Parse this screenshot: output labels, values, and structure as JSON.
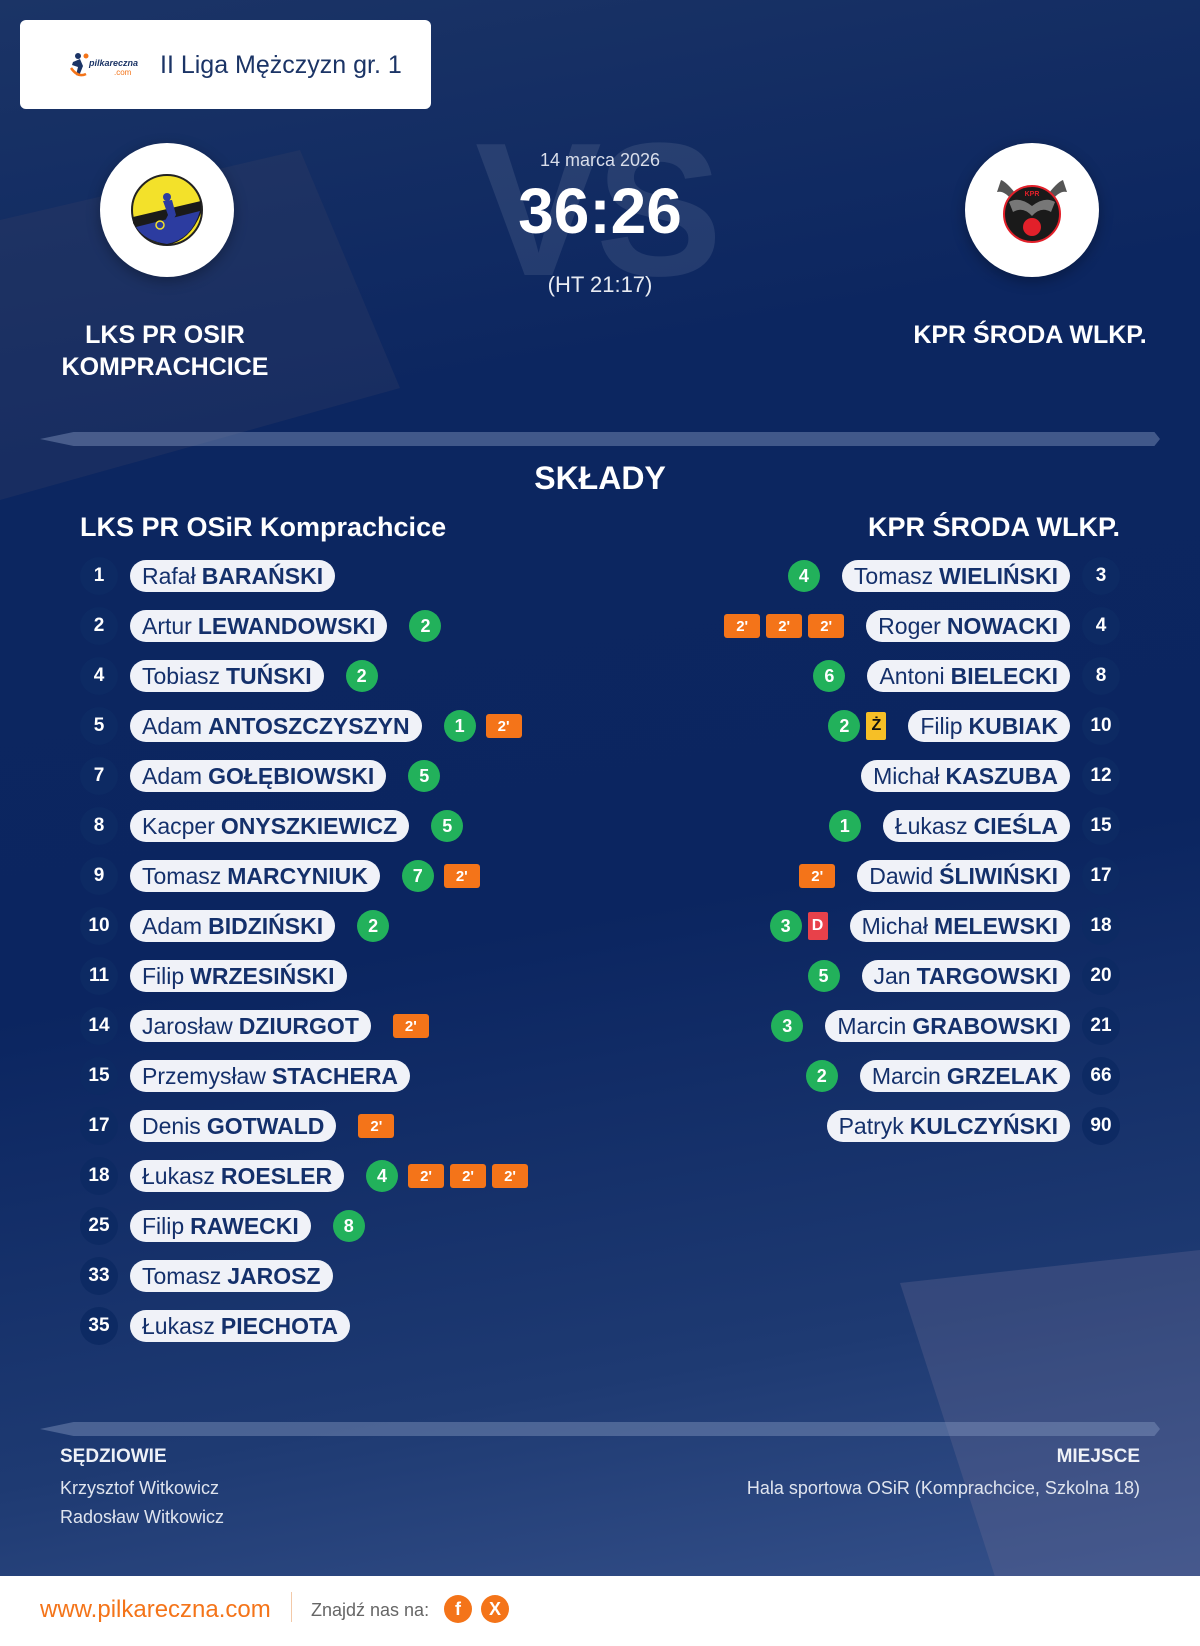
{
  "header": {
    "brand": "pilkareczna.com",
    "league": "II Liga Mężczyzn gr. 1"
  },
  "match": {
    "date": "14 marca 2026",
    "score": "36:26",
    "halftime": "(HT 21:17)",
    "watermark": "VS"
  },
  "home_team": {
    "display_name_line1": "LKS PR OSIR",
    "display_name_line2": "KOMPRACHCICE",
    "lineup_title": "LKS PR OSiR Komprachcice",
    "logo_colors": {
      "primary": "#f3e12a",
      "secondary": "#1f2d8a"
    }
  },
  "away_team": {
    "display_name": "KPR ŚRODA WLKP.",
    "lineup_title": "KPR ŚRODA WLKP.",
    "logo_colors": {
      "primary": "#222222",
      "secondary": "#e2202a"
    }
  },
  "section_title": "SKŁADY",
  "home_players": [
    {
      "number": "1",
      "first": "Rafał",
      "last": "BARAŃSKI",
      "events": []
    },
    {
      "number": "2",
      "first": "Artur",
      "last": "LEWANDOWSKI",
      "events": [
        {
          "type": "goal",
          "value": "2"
        }
      ]
    },
    {
      "number": "4",
      "first": "Tobiasz",
      "last": "TUŃSKI",
      "events": [
        {
          "type": "goal",
          "value": "2"
        }
      ]
    },
    {
      "number": "5",
      "first": "Adam",
      "last": "ANTOSZCZYSZYN",
      "events": [
        {
          "type": "goal",
          "value": "1"
        },
        {
          "type": "susp",
          "value": "2'"
        }
      ]
    },
    {
      "number": "7",
      "first": "Adam",
      "last": "GOŁĘBIOWSKI",
      "events": [
        {
          "type": "goal",
          "value": "5"
        }
      ]
    },
    {
      "number": "8",
      "first": "Kacper",
      "last": "ONYSZKIEWICZ",
      "events": [
        {
          "type": "goal",
          "value": "5"
        }
      ]
    },
    {
      "number": "9",
      "first": "Tomasz",
      "last": "MARCYNIUK",
      "events": [
        {
          "type": "goal",
          "value": "7"
        },
        {
          "type": "susp",
          "value": "2'"
        }
      ]
    },
    {
      "number": "10",
      "first": "Adam",
      "last": "BIDZIŃSKI",
      "events": [
        {
          "type": "goal",
          "value": "2"
        }
      ]
    },
    {
      "number": "11",
      "first": "Filip",
      "last": "WRZESIŃSKI",
      "events": []
    },
    {
      "number": "14",
      "first": "Jarosław",
      "last": "DZIURGOT",
      "events": [
        {
          "type": "susp",
          "value": "2'"
        }
      ]
    },
    {
      "number": "15",
      "first": "Przemysław",
      "last": "STACHERA",
      "events": []
    },
    {
      "number": "17",
      "first": "Denis",
      "last": "GOTWALD",
      "events": [
        {
          "type": "susp",
          "value": "2'"
        }
      ]
    },
    {
      "number": "18",
      "first": "Łukasz",
      "last": "ROESLER",
      "events": [
        {
          "type": "goal",
          "value": "4"
        },
        {
          "type": "susp",
          "value": "2'"
        },
        {
          "type": "susp",
          "value": "2'"
        },
        {
          "type": "susp",
          "value": "2'"
        }
      ]
    },
    {
      "number": "25",
      "first": "Filip",
      "last": "RAWECKI",
      "events": [
        {
          "type": "goal",
          "value": "8"
        }
      ]
    },
    {
      "number": "33",
      "first": "Tomasz",
      "last": "JAROSZ",
      "events": []
    },
    {
      "number": "35",
      "first": "Łukasz",
      "last": "PIECHOTA",
      "events": []
    }
  ],
  "away_players": [
    {
      "number": "3",
      "first": "Tomasz",
      "last": "WIELIŃSKI",
      "events": [
        {
          "type": "goal",
          "value": "4"
        }
      ]
    },
    {
      "number": "4",
      "first": "Roger",
      "last": "NOWACKI",
      "events": [
        {
          "type": "susp",
          "value": "2'"
        },
        {
          "type": "susp",
          "value": "2'"
        },
        {
          "type": "susp",
          "value": "2'"
        }
      ]
    },
    {
      "number": "8",
      "first": "Antoni",
      "last": "BIELECKI",
      "events": [
        {
          "type": "goal",
          "value": "6"
        }
      ]
    },
    {
      "number": "10",
      "first": "Filip",
      "last": "KUBIAK",
      "events": [
        {
          "type": "yellow",
          "value": "Ż"
        },
        {
          "type": "goal",
          "value": "2"
        }
      ]
    },
    {
      "number": "12",
      "first": "Michał",
      "last": "KASZUBA",
      "events": []
    },
    {
      "number": "15",
      "first": "Łukasz",
      "last": "CIEŚLA",
      "events": [
        {
          "type": "goal",
          "value": "1"
        }
      ]
    },
    {
      "number": "17",
      "first": "Dawid",
      "last": "ŚLIWIŃSKI",
      "events": [
        {
          "type": "susp",
          "value": "2'"
        }
      ]
    },
    {
      "number": "18",
      "first": "Michał",
      "last": "MELEWSKI",
      "events": [
        {
          "type": "red",
          "value": "D"
        },
        {
          "type": "goal",
          "value": "3"
        }
      ]
    },
    {
      "number": "20",
      "first": "Jan",
      "last": "TARGOWSKI",
      "events": [
        {
          "type": "goal",
          "value": "5"
        }
      ]
    },
    {
      "number": "21",
      "first": "Marcin",
      "last": "GRABOWSKI",
      "events": [
        {
          "type": "goal",
          "value": "3"
        }
      ]
    },
    {
      "number": "66",
      "first": "Marcin",
      "last": "GRZELAK",
      "events": [
        {
          "type": "goal",
          "value": "2"
        }
      ]
    },
    {
      "number": "90",
      "first": "Patryk",
      "last": "KULCZYŃSKI",
      "events": []
    }
  ],
  "officials": {
    "referees_label": "SĘDZIOWIE",
    "referees": [
      "Krzysztof Witkowicz",
      "Radosław Witkowicz"
    ],
    "venue_label": "MIEJSCE",
    "venue": "Hala sportowa OSiR (Komprachcice, Szkolna 18)"
  },
  "footer": {
    "url": "www.pilkareczna.com",
    "find_us": "Znajdź nas na:",
    "social": [
      {
        "name": "facebook",
        "glyph": "f"
      },
      {
        "name": "x",
        "glyph": "X"
      }
    ]
  },
  "colors": {
    "accent": "#f47419",
    "goal": "#22b15b",
    "suspension": "#f47419",
    "yellow_card": "#f6bf26",
    "red_card": "#e8414a",
    "navy": "#0b2560"
  }
}
